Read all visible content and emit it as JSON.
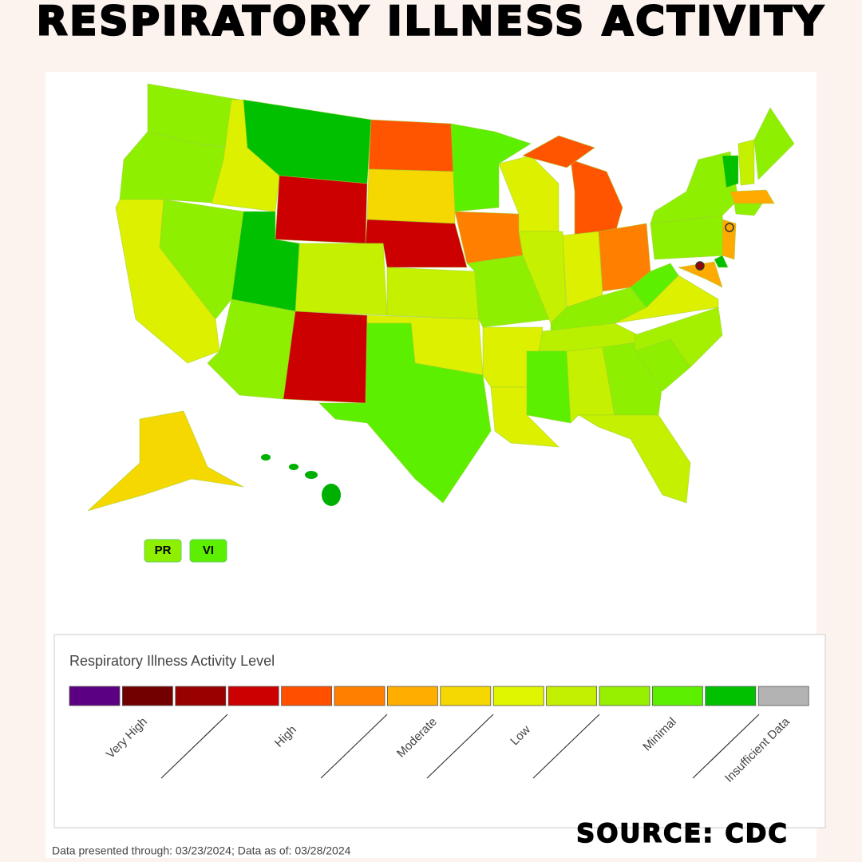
{
  "header": {
    "title": "RESPIRATORY ILLNESS ACTIVITY"
  },
  "territories": [
    "PR",
    "VI"
  ],
  "legend": {
    "title": "Respiratory Illness Activity Level",
    "colors": [
      "#5a0080",
      "#730000",
      "#990000",
      "#cc0000",
      "#ff5000",
      "#ff8000",
      "#ffae00",
      "#f5d800",
      "#e0f500",
      "#c2f000",
      "#96f000",
      "#5cf000",
      "#00c000",
      "#b3b3b3"
    ],
    "labels": [
      "Very High",
      "High",
      "Moderate",
      "Low",
      "Minimal",
      "Insufficient Data"
    ]
  },
  "footer": "Data presented through: 03/23/2024; Data as of: 03/28/2024",
  "source": "SOURCE: CDC"
}
